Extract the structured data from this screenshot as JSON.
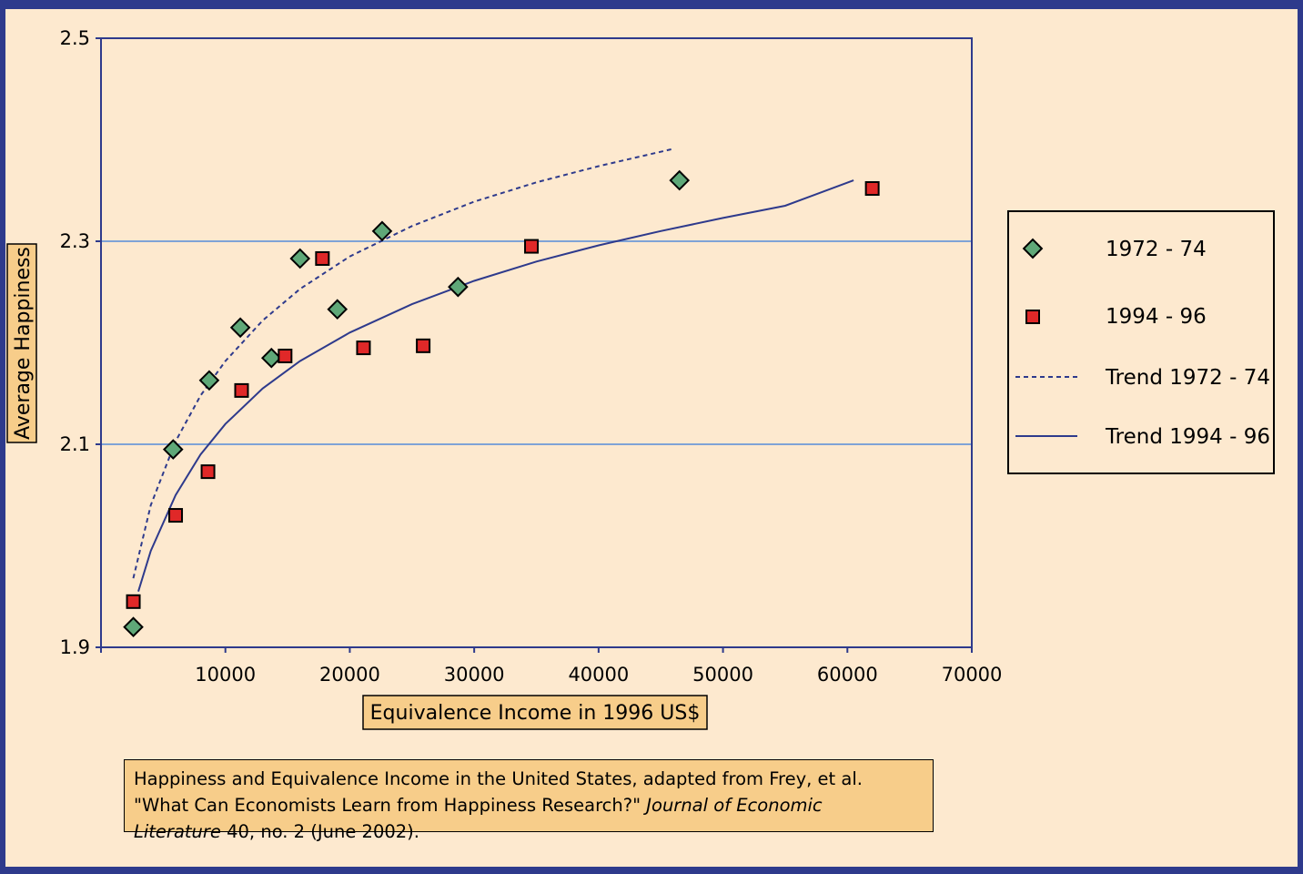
{
  "chart_data": {
    "type": "scatter",
    "xlabel": "Equivalence Income in 1996 US$",
    "ylabel": "Average Happiness",
    "xlim": [
      0,
      70000
    ],
    "ylim": [
      1.9,
      2.5
    ],
    "x_ticks": [
      "10000",
      "20000",
      "30000",
      "40000",
      "50000",
      "60000",
      "70000"
    ],
    "y_ticks": [
      "1.9",
      "2.1",
      "2.3",
      "2.5"
    ],
    "grid": "horizontal lines at 2.1 and 2.3",
    "legend_position": "right",
    "series": [
      {
        "name": "1972 - 74",
        "marker": "diamond",
        "color": "#5fa878",
        "points": [
          [
            2600,
            1.92
          ],
          [
            5800,
            2.095
          ],
          [
            8700,
            2.163
          ],
          [
            11200,
            2.215
          ],
          [
            13700,
            2.185
          ],
          [
            16000,
            2.283
          ],
          [
            19000,
            2.233
          ],
          [
            22600,
            2.31
          ],
          [
            28700,
            2.255
          ],
          [
            46500,
            2.36
          ]
        ]
      },
      {
        "name": "1994 - 96",
        "marker": "square",
        "color": "#e02828",
        "points": [
          [
            2600,
            1.945
          ],
          [
            6000,
            2.03
          ],
          [
            8600,
            2.073
          ],
          [
            11300,
            2.153
          ],
          [
            14800,
            2.187
          ],
          [
            17800,
            2.283
          ],
          [
            21100,
            2.195
          ],
          [
            25900,
            2.197
          ],
          [
            34600,
            2.295
          ],
          [
            62000,
            2.352
          ]
        ]
      },
      {
        "name": "Trend 1972 - 74",
        "type": "line",
        "style": "dashed",
        "color": "#2e3a8c",
        "points": [
          [
            2600,
            1.968
          ],
          [
            4000,
            2.04
          ],
          [
            6000,
            2.103
          ],
          [
            8000,
            2.148
          ],
          [
            10000,
            2.182
          ],
          [
            13000,
            2.222
          ],
          [
            16000,
            2.253
          ],
          [
            20000,
            2.285
          ],
          [
            25000,
            2.315
          ],
          [
            30000,
            2.339
          ],
          [
            35000,
            2.358
          ],
          [
            40000,
            2.374
          ],
          [
            46000,
            2.391
          ]
        ]
      },
      {
        "name": "Trend 1994 - 96",
        "type": "line",
        "style": "solid",
        "color": "#2e3a8c",
        "points": [
          [
            3000,
            1.955
          ],
          [
            4000,
            1.995
          ],
          [
            6000,
            2.05
          ],
          [
            8000,
            2.09
          ],
          [
            10000,
            2.12
          ],
          [
            13000,
            2.155
          ],
          [
            16000,
            2.182
          ],
          [
            20000,
            2.21
          ],
          [
            25000,
            2.238
          ],
          [
            30000,
            2.261
          ],
          [
            35000,
            2.28
          ],
          [
            40000,
            2.296
          ],
          [
            45000,
            2.31
          ],
          [
            50000,
            2.323
          ],
          [
            55000,
            2.335
          ],
          [
            60500,
            2.36
          ]
        ]
      }
    ]
  },
  "legend": {
    "items": [
      {
        "label": "1972 - 74",
        "symbol": "green-diamond"
      },
      {
        "label": "1994 - 96",
        "symbol": "red-square"
      },
      {
        "label": "Trend 1972 - 74",
        "symbol": "dashed-line"
      },
      {
        "label": "Trend 1994 - 96",
        "symbol": "solid-line"
      }
    ]
  },
  "caption": {
    "line1": "Happiness and Equivalence Income in the United States, adapted from Frey, et al.",
    "line2_plain": "\"What Can Economists Learn from Happiness Research?\" ",
    "line2_italic": "Journal of Economic",
    "line3_italic": "Literature",
    "line3_plain": " 40, no. 2 (June 2002)."
  },
  "colors": {
    "background": "#fde9cf",
    "border": "#2e3a8c",
    "label_box": "#f7cd8a",
    "grid": "#7fa3d6",
    "axis": "#2e3a8c"
  }
}
